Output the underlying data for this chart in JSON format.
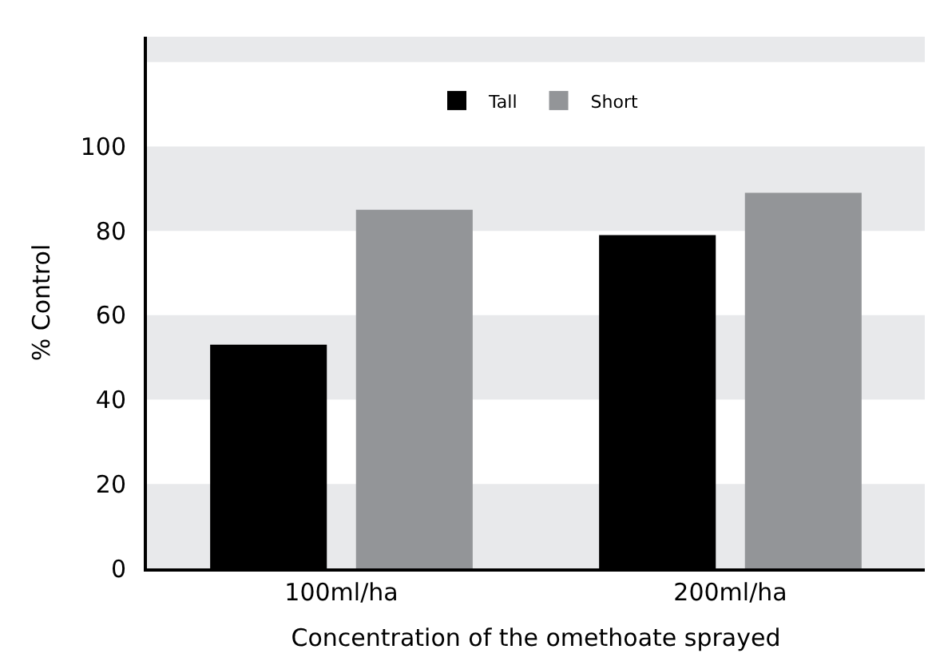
{
  "chart_data": {
    "type": "bar",
    "xlabel": "Concentration of the omethoate sprayed",
    "ylabel": "% Control",
    "categories": [
      "100ml/ha",
      "200ml/ha"
    ],
    "series": [
      {
        "name": "Tall",
        "color": "#000000",
        "values": [
          53,
          79
        ]
      },
      {
        "name": "Short",
        "color": "#939598",
        "values": [
          85,
          89
        ]
      }
    ],
    "ylim": [
      0,
      126
    ],
    "yticks": [
      0,
      20,
      40,
      60,
      80,
      100
    ],
    "grid": false,
    "legend": "top",
    "bands": [
      {
        "axis": "y",
        "from": 0,
        "to": 20,
        "color": "#e8e9eb"
      },
      {
        "axis": "y",
        "from": 40,
        "to": 60,
        "color": "#e8e9eb"
      },
      {
        "axis": "y",
        "from": 80,
        "to": 100,
        "color": "#e8e9eb"
      },
      {
        "axis": "y",
        "from": 120,
        "to": 126,
        "color": "#e8e9eb"
      }
    ]
  }
}
